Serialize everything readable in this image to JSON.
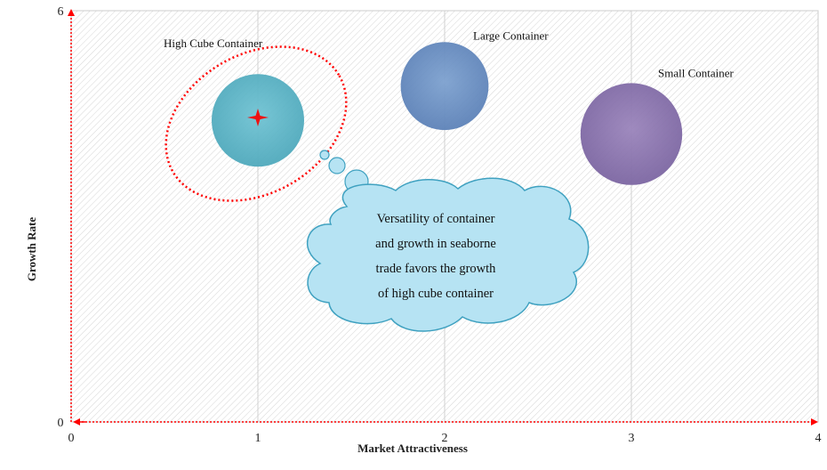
{
  "chart_data": {
    "type": "bubble",
    "xlabel": "Market Attractiveness",
    "ylabel": "Growth Rate",
    "xlim": [
      0,
      4
    ],
    "ylim": [
      0,
      6
    ],
    "xticks": [
      "0",
      "1",
      "2",
      "3",
      "4"
    ],
    "yticks": [
      "0",
      "6"
    ],
    "grid": "vertical",
    "background": "diagonal-hatch",
    "series": [
      {
        "name": "High Cube Container",
        "x": 1.0,
        "y": 4.4,
        "size": 1.0,
        "color": "#58b4c6",
        "highlighted": true
      },
      {
        "name": "Large Container",
        "x": 2.0,
        "y": 4.9,
        "size": 0.95,
        "color": "#6a8fc4"
      },
      {
        "name": "Small Container",
        "x": 3.0,
        "y": 4.2,
        "size": 1.1,
        "color": "#8a72ae"
      }
    ],
    "annotation": {
      "lines": [
        "Versatility of container",
        "and growth in seaborne",
        "trade favors the growth",
        "of high cube container"
      ],
      "color": "#b6e3f3",
      "points_to": "High Cube Container"
    },
    "colors": {
      "axis": "#ff0000",
      "highlight": "#ff0000",
      "grid": "#d0d0d0"
    }
  }
}
